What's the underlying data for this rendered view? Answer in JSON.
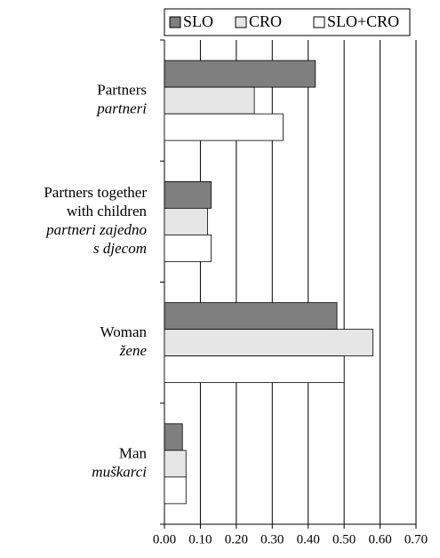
{
  "chart_data": {
    "type": "barh",
    "categories": [
      [
        "Partners"
      ],
      [
        "Partners together",
        "with children"
      ],
      [
        "Woman"
      ],
      [
        "Man"
      ]
    ],
    "categories_local": [
      [
        "partneri"
      ],
      [
        "partneri zajedno",
        "s djecom"
      ],
      [
        "žene"
      ],
      [
        "muškarci"
      ]
    ],
    "series": [
      {
        "name": "SLO",
        "color": "#7f7f7f",
        "values": [
          0.42,
          0.13,
          0.48,
          0.05
        ]
      },
      {
        "name": "CRO",
        "color": "#e6e6e6",
        "values": [
          0.25,
          0.12,
          0.58,
          0.06
        ]
      },
      {
        "name": "SLO+CRO",
        "color": "#ffffff",
        "values": [
          0.33,
          0.13,
          0.5,
          0.06
        ]
      }
    ],
    "xlim": [
      0,
      0.7
    ],
    "xticks": [
      {
        "value": 0,
        "label": "0.00"
      },
      {
        "value": 0.1,
        "label": "0.10"
      },
      {
        "value": 0.2,
        "label": "0.20"
      },
      {
        "value": 0.3,
        "label": "0.30"
      },
      {
        "value": 0.4,
        "label": "0.40"
      },
      {
        "value": 0.5,
        "label": "0.50"
      },
      {
        "value": 0.6,
        "label": "0.60"
      },
      {
        "value": 0.7,
        "label": "0.70"
      }
    ],
    "grid": true,
    "legend": "top"
  }
}
